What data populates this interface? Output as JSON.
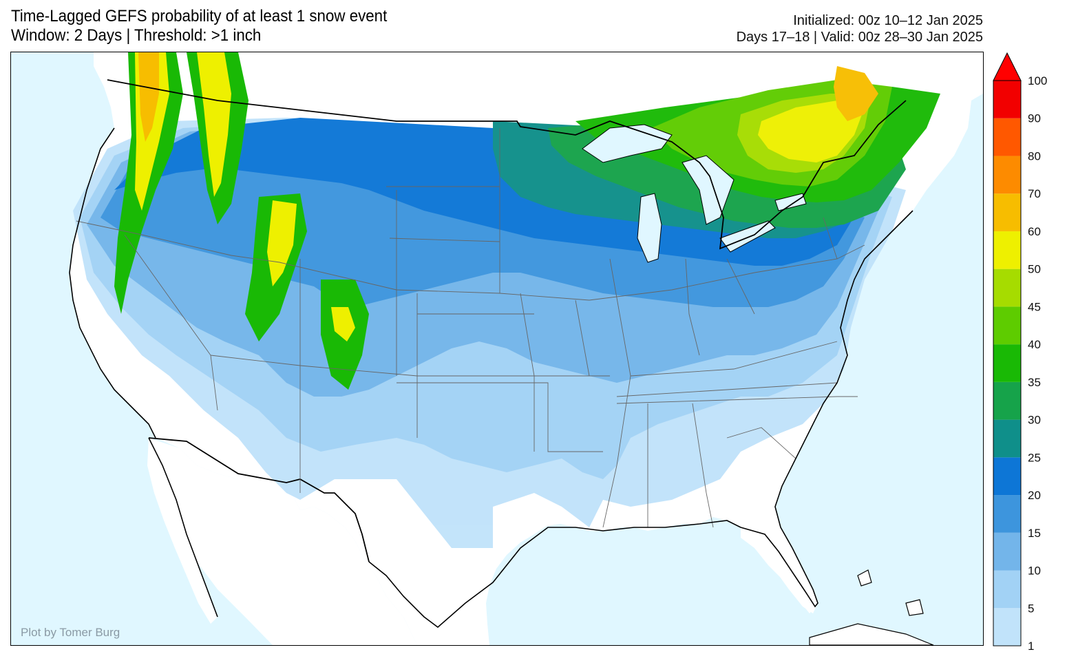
{
  "title": {
    "line1": "Time-Lagged GEFS probability of at least 1 snow event",
    "line2": "Window: 2 Days | Threshold: >1 inch"
  },
  "info": {
    "line1": "Initialized: 00z 10–12 Jan 2025",
    "line2": "Days 17–18 | Valid: 00z 28–30 Jan 2025"
  },
  "credit": "Plot by Tomer Burg",
  "colors": {
    "ocean": "#e0f7ff",
    "land": "#ffffff"
  },
  "colorbar": {
    "levels": [
      {
        "label": "1",
        "color": "#c1e3fa"
      },
      {
        "label": "5",
        "color": "#a2d2f5"
      },
      {
        "label": "10",
        "color": "#73b5ea"
      },
      {
        "label": "15",
        "color": "#3d95dd"
      },
      {
        "label": "20",
        "color": "#0d76d6"
      },
      {
        "label": "25",
        "color": "#0f8f8a"
      },
      {
        "label": "30",
        "color": "#16a34a"
      },
      {
        "label": "35",
        "color": "#19b905"
      },
      {
        "label": "40",
        "color": "#5ecc00"
      },
      {
        "label": "45",
        "color": "#a6dc00"
      },
      {
        "label": "50",
        "color": "#eef000"
      },
      {
        "label": "60",
        "color": "#f7bd00"
      },
      {
        "label": "70",
        "color": "#fd8b00"
      },
      {
        "label": "80",
        "color": "#ff5800"
      },
      {
        "label": "90",
        "color": "#f20000"
      }
    ],
    "top_label": "100",
    "arrow_color": "#ff0000"
  }
}
